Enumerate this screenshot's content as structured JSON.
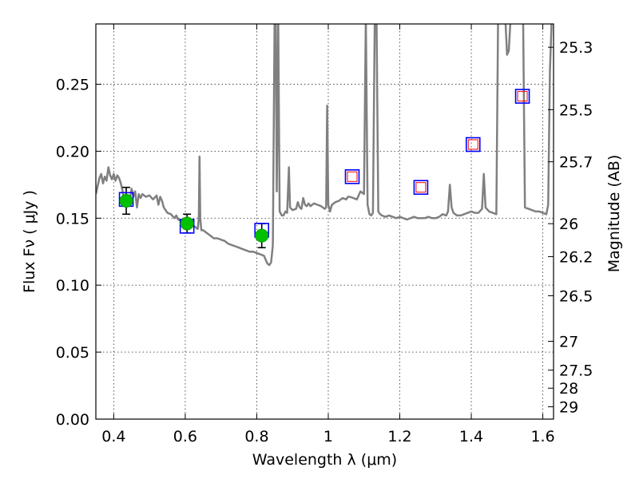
{
  "chart_data": {
    "type": "scatter",
    "title": "",
    "xlabel": "Wavelength  λ (μm)",
    "ylabel": "Flux  Fν  ( μJy )",
    "y2label": "Magnitude (AB)",
    "xlim": [
      0.35,
      1.63
    ],
    "ylim": [
      0.0,
      0.295
    ],
    "grid": true,
    "x_ticks": [
      0.4,
      0.6,
      0.8,
      1.0,
      1.2,
      1.4,
      1.6
    ],
    "x_tick_labels": [
      "0.4",
      "0.6",
      "0.8",
      "1",
      "1.2",
      "1.4",
      "1.6"
    ],
    "y_ticks": [
      0.0,
      0.05,
      0.1,
      0.15,
      0.2,
      0.25
    ],
    "y_tick_labels": [
      "0.00",
      "0.05",
      "0.10",
      "0.15",
      "0.20",
      "0.25"
    ],
    "mag_ticks": [
      {
        "label": "25.3",
        "flux": 0.2776
      },
      {
        "label": "25.5",
        "flux": 0.231
      },
      {
        "label": "25.7",
        "flux": 0.1921
      },
      {
        "label": "26",
        "flux": 0.1459
      },
      {
        "label": "26.2",
        "flux": 0.1213
      },
      {
        "label": "26.5",
        "flux": 0.0921
      },
      {
        "label": "27",
        "flux": 0.0581
      },
      {
        "label": "27.5",
        "flux": 0.0366
      },
      {
        "label": "28",
        "flux": 0.0231
      },
      {
        "label": "29",
        "flux": 0.0092
      }
    ],
    "series": [
      {
        "kind": "sed_model",
        "color": "#808080",
        "points": [
          [
            0.35,
            0.168
          ],
          [
            0.36,
            0.18
          ],
          [
            0.365,
            0.183
          ],
          [
            0.37,
            0.176
          ],
          [
            0.375,
            0.181
          ],
          [
            0.38,
            0.178
          ],
          [
            0.385,
            0.188
          ],
          [
            0.39,
            0.182
          ],
          [
            0.395,
            0.179
          ],
          [
            0.4,
            0.183
          ],
          [
            0.405,
            0.178
          ],
          [
            0.41,
            0.182
          ],
          [
            0.415,
            0.18
          ],
          [
            0.42,
            0.176
          ],
          [
            0.425,
            0.17
          ],
          [
            0.43,
            0.162
          ],
          [
            0.435,
            0.166
          ],
          [
            0.44,
            0.16
          ],
          [
            0.445,
            0.164
          ],
          [
            0.45,
            0.172
          ],
          [
            0.455,
            0.166
          ],
          [
            0.46,
            0.17
          ],
          [
            0.465,
            0.158
          ],
          [
            0.47,
            0.168
          ],
          [
            0.475,
            0.165
          ],
          [
            0.48,
            0.168
          ],
          [
            0.49,
            0.166
          ],
          [
            0.5,
            0.167
          ],
          [
            0.51,
            0.164
          ],
          [
            0.52,
            0.167
          ],
          [
            0.525,
            0.16
          ],
          [
            0.53,
            0.166
          ],
          [
            0.535,
            0.163
          ],
          [
            0.54,
            0.158
          ],
          [
            0.545,
            0.156
          ],
          [
            0.55,
            0.154
          ],
          [
            0.56,
            0.153
          ],
          [
            0.57,
            0.15
          ],
          [
            0.575,
            0.152
          ],
          [
            0.58,
            0.149
          ],
          [
            0.59,
            0.148
          ],
          [
            0.6,
            0.148
          ],
          [
            0.61,
            0.147
          ],
          [
            0.62,
            0.145
          ],
          [
            0.63,
            0.143
          ],
          [
            0.635,
            0.142
          ],
          [
            0.638,
            0.15
          ],
          [
            0.64,
            0.196
          ],
          [
            0.642,
            0.15
          ],
          [
            0.645,
            0.141
          ],
          [
            0.65,
            0.141
          ],
          [
            0.66,
            0.139
          ],
          [
            0.67,
            0.137
          ],
          [
            0.68,
            0.135
          ],
          [
            0.69,
            0.135
          ],
          [
            0.7,
            0.134
          ],
          [
            0.71,
            0.133
          ],
          [
            0.72,
            0.131
          ],
          [
            0.73,
            0.13
          ],
          [
            0.74,
            0.129
          ],
          [
            0.75,
            0.128
          ],
          [
            0.76,
            0.127
          ],
          [
            0.77,
            0.126
          ],
          [
            0.78,
            0.125
          ],
          [
            0.79,
            0.125
          ],
          [
            0.8,
            0.124
          ],
          [
            0.81,
            0.123
          ],
          [
            0.82,
            0.122
          ],
          [
            0.825,
            0.119
          ],
          [
            0.83,
            0.116
          ],
          [
            0.835,
            0.115
          ],
          [
            0.84,
            0.117
          ],
          [
            0.845,
            0.13
          ],
          [
            0.85,
            0.3
          ],
          [
            0.853,
            0.3
          ],
          [
            0.856,
            0.17
          ],
          [
            0.86,
            0.3
          ],
          [
            0.864,
            0.155
          ],
          [
            0.87,
            0.152
          ],
          [
            0.875,
            0.152
          ],
          [
            0.88,
            0.155
          ],
          [
            0.885,
            0.154
          ],
          [
            0.89,
            0.188
          ],
          [
            0.893,
            0.158
          ],
          [
            0.9,
            0.156
          ],
          [
            0.91,
            0.157
          ],
          [
            0.915,
            0.162
          ],
          [
            0.92,
            0.158
          ],
          [
            0.925,
            0.157
          ],
          [
            0.93,
            0.165
          ],
          [
            0.935,
            0.16
          ],
          [
            0.94,
            0.159
          ],
          [
            0.945,
            0.161
          ],
          [
            0.95,
            0.159
          ],
          [
            0.955,
            0.16
          ],
          [
            0.96,
            0.161
          ],
          [
            0.97,
            0.16
          ],
          [
            0.98,
            0.159
          ],
          [
            0.985,
            0.158
          ],
          [
            0.99,
            0.157
          ],
          [
            0.994,
            0.158
          ],
          [
            0.997,
            0.234
          ],
          [
            1.0,
            0.16
          ],
          [
            1.005,
            0.155
          ],
          [
            1.01,
            0.16
          ],
          [
            1.02,
            0.162
          ],
          [
            1.03,
            0.163
          ],
          [
            1.04,
            0.165
          ],
          [
            1.05,
            0.164
          ],
          [
            1.055,
            0.166
          ],
          [
            1.06,
            0.166
          ],
          [
            1.07,
            0.165
          ],
          [
            1.08,
            0.164
          ],
          [
            1.09,
            0.17
          ],
          [
            1.1,
            0.168
          ],
          [
            1.105,
            0.3
          ],
          [
            1.11,
            0.16
          ],
          [
            1.115,
            0.153
          ],
          [
            1.12,
            0.152
          ],
          [
            1.125,
            0.154
          ],
          [
            1.13,
            0.3
          ],
          [
            1.135,
            0.3
          ],
          [
            1.14,
            0.155
          ],
          [
            1.145,
            0.153
          ],
          [
            1.15,
            0.152
          ],
          [
            1.16,
            0.151
          ],
          [
            1.17,
            0.152
          ],
          [
            1.18,
            0.151
          ],
          [
            1.19,
            0.15
          ],
          [
            1.2,
            0.151
          ],
          [
            1.21,
            0.15
          ],
          [
            1.22,
            0.149
          ],
          [
            1.23,
            0.15
          ],
          [
            1.24,
            0.151
          ],
          [
            1.25,
            0.15
          ],
          [
            1.26,
            0.15
          ],
          [
            1.27,
            0.15
          ],
          [
            1.28,
            0.151
          ],
          [
            1.29,
            0.15
          ],
          [
            1.3,
            0.15
          ],
          [
            1.31,
            0.151
          ],
          [
            1.32,
            0.153
          ],
          [
            1.33,
            0.152
          ],
          [
            1.335,
            0.155
          ],
          [
            1.34,
            0.175
          ],
          [
            1.345,
            0.158
          ],
          [
            1.35,
            0.154
          ],
          [
            1.36,
            0.152
          ],
          [
            1.37,
            0.152
          ],
          [
            1.38,
            0.153
          ],
          [
            1.39,
            0.154
          ],
          [
            1.4,
            0.155
          ],
          [
            1.41,
            0.154
          ],
          [
            1.42,
            0.154
          ],
          [
            1.43,
            0.157
          ],
          [
            1.435,
            0.183
          ],
          [
            1.44,
            0.158
          ],
          [
            1.45,
            0.155
          ],
          [
            1.46,
            0.154
          ],
          [
            1.47,
            0.153
          ],
          [
            1.475,
            0.3
          ],
          [
            1.48,
            0.3
          ],
          [
            1.495,
            0.3
          ],
          [
            1.5,
            0.272
          ],
          [
            1.505,
            0.275
          ],
          [
            1.51,
            0.3
          ],
          [
            1.52,
            0.3
          ],
          [
            1.53,
            0.3
          ],
          [
            1.535,
            0.3
          ],
          [
            1.54,
            0.3
          ],
          [
            1.545,
            0.3
          ],
          [
            1.55,
            0.158
          ],
          [
            1.56,
            0.157
          ],
          [
            1.57,
            0.156
          ],
          [
            1.58,
            0.155
          ],
          [
            1.59,
            0.155
          ],
          [
            1.6,
            0.154
          ],
          [
            1.61,
            0.153
          ],
          [
            1.615,
            0.16
          ],
          [
            1.62,
            0.26
          ],
          [
            1.625,
            0.3
          ]
        ]
      },
      {
        "kind": "model_photometry",
        "marker": "square",
        "edge_color": "#0000ff",
        "points": [
          [
            0.435,
            0.164
          ],
          [
            0.605,
            0.144
          ],
          [
            0.814,
            0.141
          ],
          [
            1.067,
            0.181
          ],
          [
            1.259,
            0.173
          ],
          [
            1.405,
            0.205
          ],
          [
            1.543,
            0.241
          ]
        ]
      },
      {
        "kind": "upper_limit",
        "marker": "square",
        "edge_color": "#ff0000",
        "points": [
          [
            1.067,
            0.181
          ],
          [
            1.259,
            0.173
          ],
          [
            1.405,
            0.205
          ],
          [
            1.543,
            0.241
          ]
        ]
      },
      {
        "kind": "observed",
        "marker": "circle",
        "color": "#00c000",
        "points": [
          [
            0.435,
            0.163
          ],
          [
            0.605,
            0.146
          ],
          [
            0.814,
            0.137
          ]
        ],
        "errors": [
          0.01,
          0.007,
          0.009
        ]
      }
    ]
  }
}
